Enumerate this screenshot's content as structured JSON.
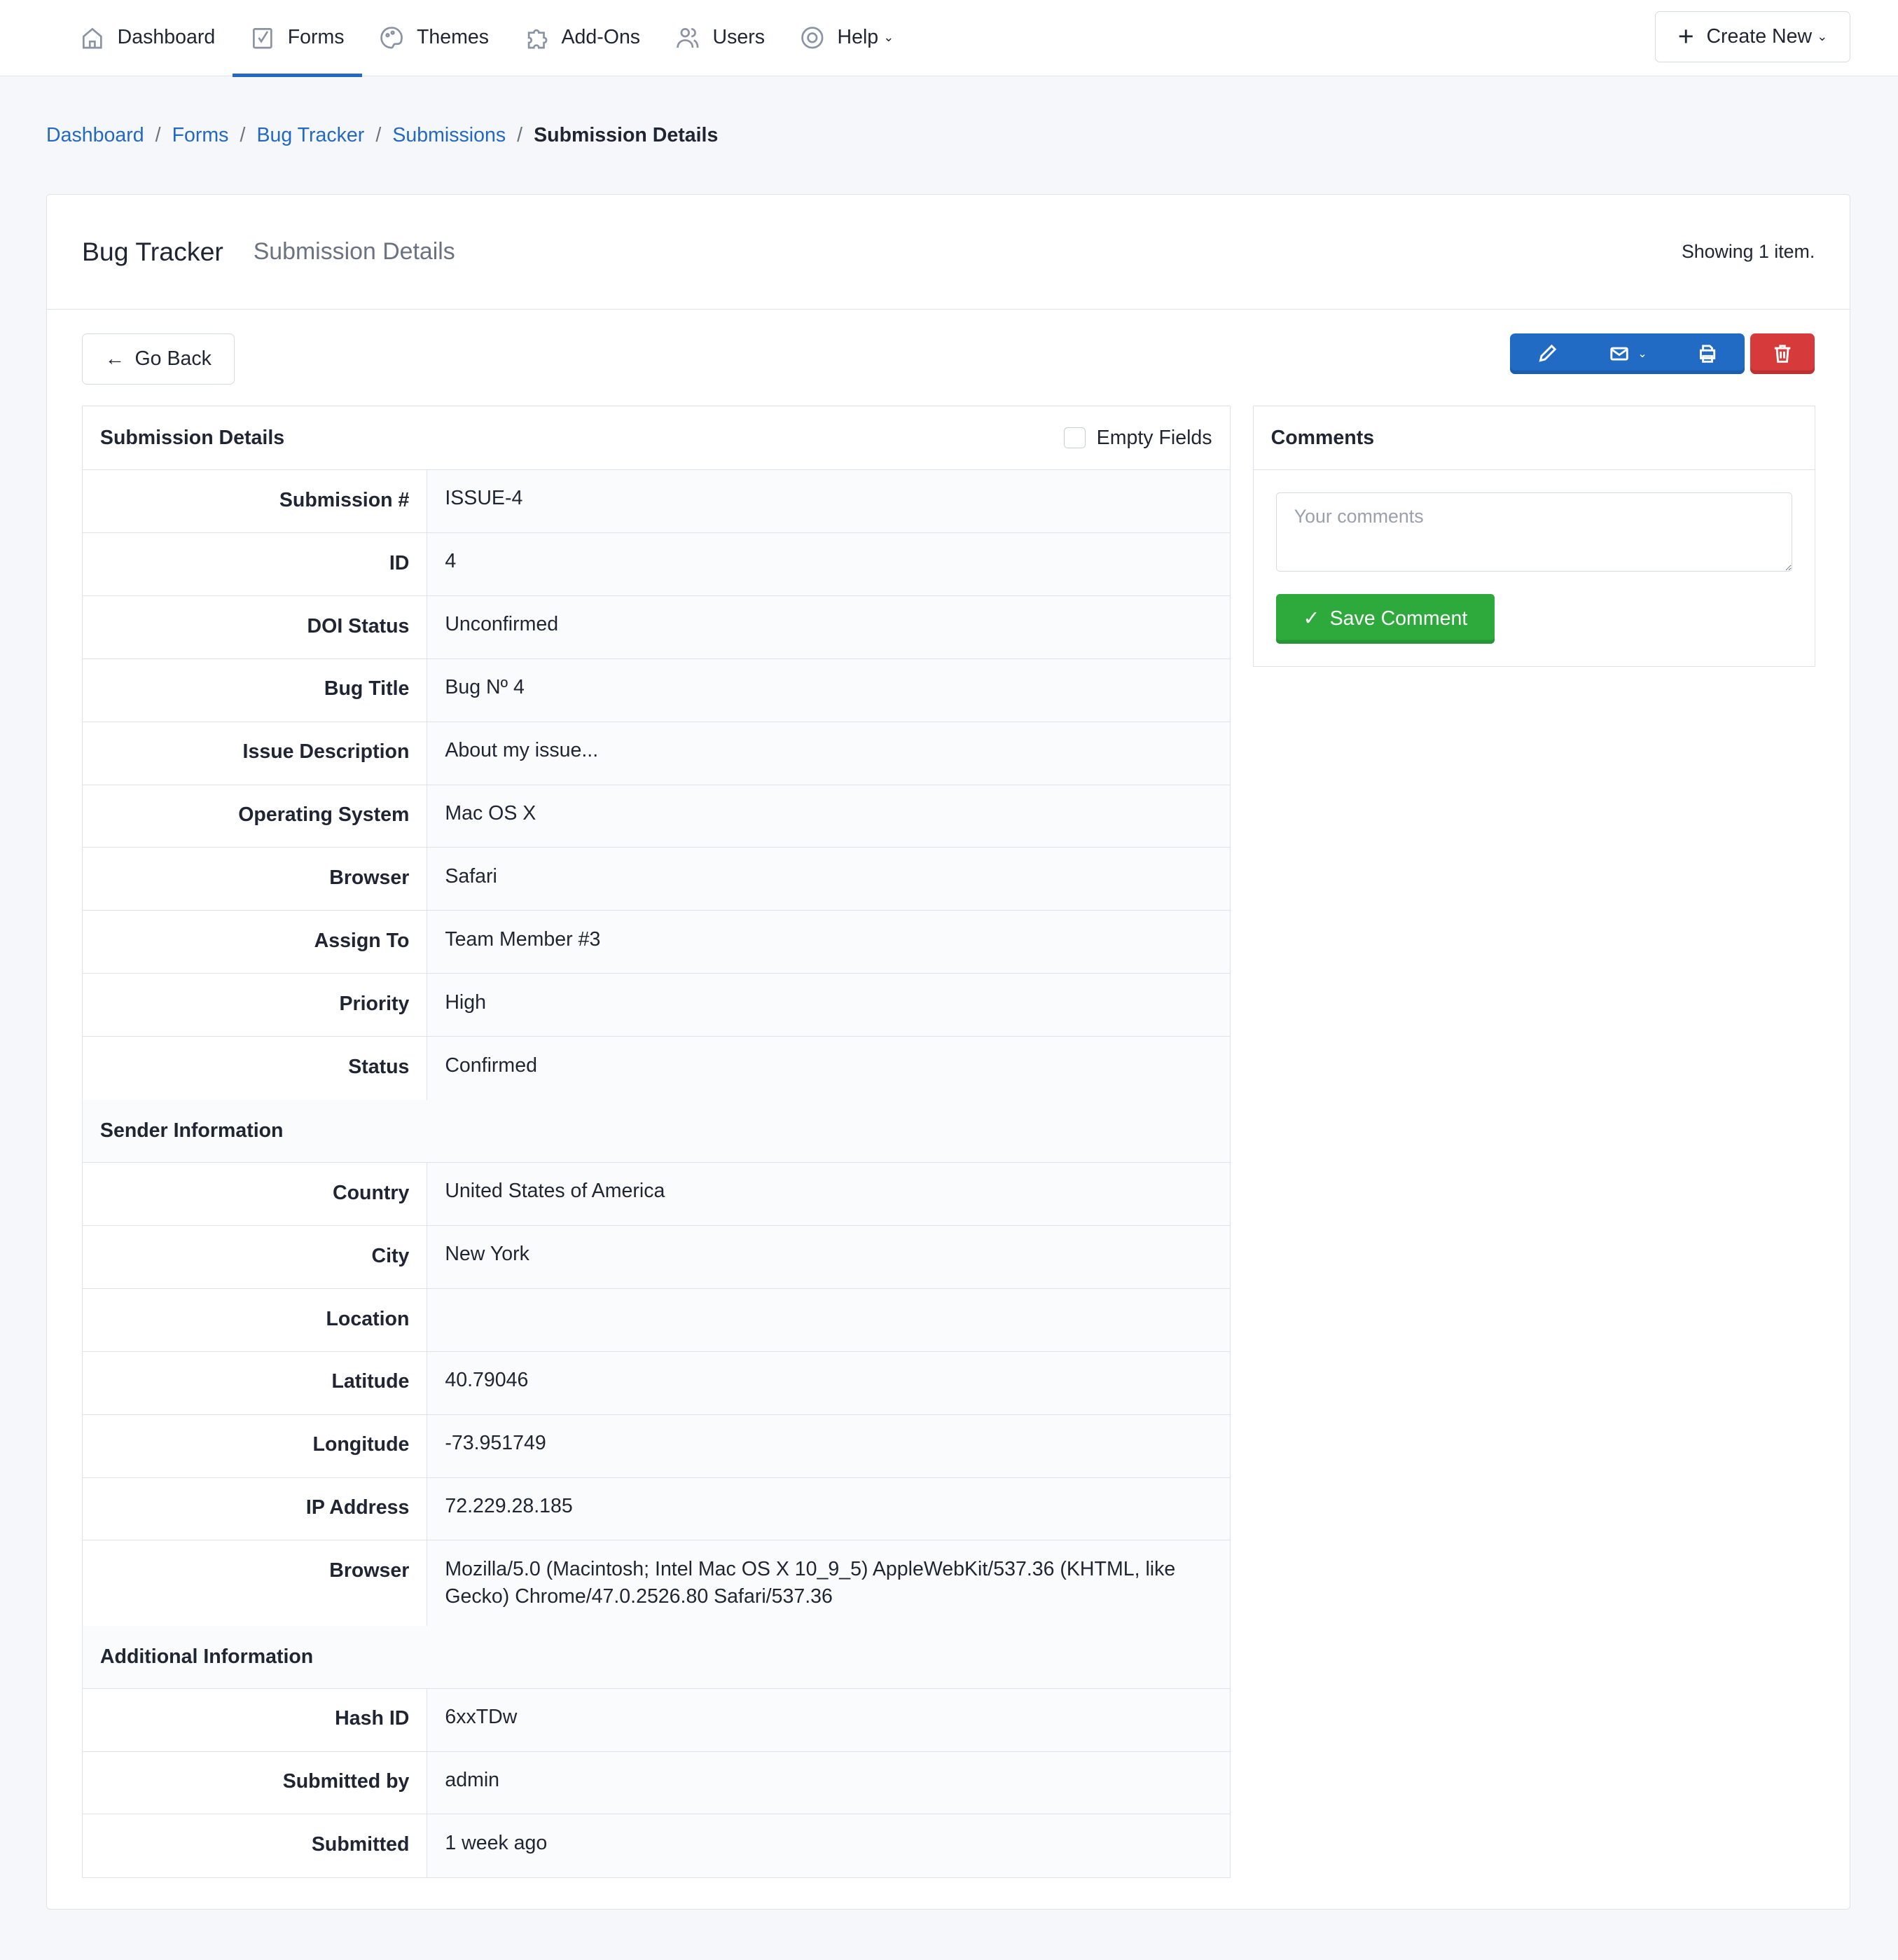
{
  "nav": {
    "items": [
      {
        "label": "Dashboard",
        "icon": "home-icon"
      },
      {
        "label": "Forms",
        "icon": "checkbox-icon",
        "active": true
      },
      {
        "label": "Themes",
        "icon": "palette-icon"
      },
      {
        "label": "Add-Ons",
        "icon": "puzzle-icon"
      },
      {
        "label": "Users",
        "icon": "users-icon"
      },
      {
        "label": "Help",
        "icon": "lifebuoy-icon"
      }
    ],
    "create_new": "Create New"
  },
  "breadcrumb": [
    "Dashboard",
    "Forms",
    "Bug Tracker",
    "Submissions",
    "Submission Details"
  ],
  "card": {
    "title": "Bug Tracker",
    "subtitle": "Submission Details",
    "showing": "Showing 1 item.",
    "go_back": "Go Back"
  },
  "details": {
    "title": "Submission Details",
    "empty_fields": "Empty Fields",
    "rows": [
      [
        "Submission #",
        "ISSUE-4"
      ],
      [
        "ID",
        "4"
      ],
      [
        "DOI Status",
        "Unconfirmed"
      ],
      [
        "Bug Title",
        "Bug Nº 4"
      ],
      [
        "Issue Description",
        "About my issue..."
      ],
      [
        "Operating System",
        "Mac OS X"
      ],
      [
        "Browser",
        "Safari"
      ],
      [
        "Assign To",
        "Team Member #3"
      ],
      [
        "Priority",
        "High"
      ],
      [
        "Status",
        "Confirmed"
      ]
    ],
    "sender_title": "Sender Information",
    "sender": [
      [
        "Country",
        "United States of America"
      ],
      [
        "City",
        "New York"
      ],
      [
        "Location",
        ""
      ],
      [
        "Latitude",
        "40.79046"
      ],
      [
        "Longitude",
        "-73.951749"
      ],
      [
        "IP Address",
        "72.229.28.185"
      ],
      [
        "Browser",
        "Mozilla/5.0 (Macintosh; Intel Mac OS X 10_9_5) AppleWebKit/537.36 (KHTML, like Gecko) Chrome/47.0.2526.80 Safari/537.36"
      ]
    ],
    "additional_title": "Additional Information",
    "additional": [
      [
        "Hash ID",
        "6xxTDw"
      ],
      [
        "Submitted by",
        "admin"
      ],
      [
        "Submitted",
        "1 week ago"
      ]
    ]
  },
  "comments": {
    "title": "Comments",
    "placeholder": "Your comments",
    "save": "Save Comment"
  },
  "colors": {
    "accent": "#2269c3",
    "danger": "#d63a3a",
    "success": "#2eaa3d"
  }
}
